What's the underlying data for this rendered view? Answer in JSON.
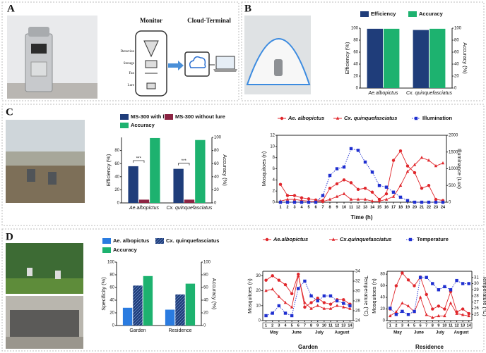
{
  "panels": {
    "labels": [
      "A",
      "B",
      "C",
      "D"
    ],
    "diagram": {
      "monitor": "Monitor",
      "cloud": "Cloud-Terminal",
      "parts": [
        "Detection",
        "Storage",
        "Fan",
        "Lure"
      ]
    }
  },
  "chart_data": [
    {
      "type": "bar",
      "categories": [
        "Ae.albopictus",
        "Cx. quinquefasciatus"
      ],
      "series": [
        {
          "name": "Efficiency",
          "color": "#1f3d7a",
          "values": [
            99,
            97
          ]
        },
        {
          "name": "Accuracy",
          "color": "#1db26f",
          "values": [
            99,
            99
          ],
          "axis": "y2"
        }
      ],
      "ylabel": "Efficiency (%)",
      "y2label": "Accuracy (%)",
      "ylabel_color": "#1f3d9a",
      "y2label_color": "#1db26f",
      "ylim": [
        0,
        100
      ],
      "yticks": [
        0,
        20,
        40,
        60,
        80,
        100
      ],
      "y2lim": [
        0,
        100
      ],
      "y2ticks": [
        0,
        20,
        40,
        60,
        80,
        100
      ]
    },
    {
      "type": "bar",
      "categories": [
        "Ae.albopictus",
        "Cx. quinquefasciatus"
      ],
      "series": [
        {
          "name": "MS-300 with lure",
          "color": "#1f3d7a",
          "values": [
            56,
            52
          ]
        },
        {
          "name": "MS-300 without lure",
          "color": "#8c2443",
          "values": [
            5,
            5
          ]
        },
        {
          "name": "Accuracy",
          "color": "#1db26f",
          "values": [
            99,
            96
          ],
          "axis": "y2"
        }
      ],
      "annotations": [
        "***",
        "***"
      ],
      "ylabel": "Efficiency (%)",
      "y2label": "Accuracy (%)",
      "ylabel_color": "#1f3d9a",
      "y2label_color": "#1db26f",
      "ylim": [
        0,
        100
      ],
      "yticks": [
        0,
        20,
        40,
        60,
        80
      ],
      "y2lim": [
        0,
        100
      ],
      "y2ticks": [
        0,
        20,
        40,
        60,
        80,
        100
      ]
    },
    {
      "type": "line",
      "x": [
        1,
        2,
        3,
        4,
        5,
        6,
        7,
        8,
        9,
        10,
        11,
        12,
        13,
        14,
        15,
        16,
        17,
        18,
        19,
        20,
        21,
        22,
        23,
        24
      ],
      "series": [
        {
          "name": "Ae. albopictus",
          "color": "#e0262b",
          "marker": "circle",
          "values": [
            3.2,
            1.2,
            1.2,
            0.8,
            0.6,
            0.4,
            0.3,
            2.5,
            3.3,
            4,
            3.5,
            2.3,
            2.5,
            1.8,
            0.5,
            1.5,
            7.5,
            9.2,
            6.5,
            5.3,
            2.5,
            3,
            0.5,
            0.3
          ]
        },
        {
          "name": "Cx. quinquefasciatus",
          "color": "#e0262b",
          "marker": "triangle",
          "values": [
            0.2,
            0.5,
            0.5,
            0.3,
            0.2,
            0.2,
            0.1,
            0.5,
            1,
            1.5,
            0.5,
            0.5,
            0.5,
            0.2,
            0.2,
            0.5,
            1,
            3,
            5.5,
            6.7,
            8,
            7.5,
            6.5,
            7
          ]
        },
        {
          "name": "Illumination",
          "color": "#1f2fd0",
          "marker": "square",
          "dash": true,
          "axis": "y2",
          "values": [
            0,
            0,
            0,
            0,
            0,
            0,
            200,
            800,
            1000,
            1050,
            1600,
            1550,
            1200,
            900,
            500,
            450,
            300,
            150,
            50,
            0,
            0,
            0,
            0,
            0
          ]
        }
      ],
      "xlabel": "Time (h)",
      "ylabel": "Mosquitoes (n)",
      "y2label": "Illuminance (Lux)",
      "ylabel_color": "#c8202a",
      "y2label_color": "#1f2fd0",
      "xlim": [
        0.5,
        24.5
      ],
      "xticks": [
        1,
        2,
        3,
        4,
        5,
        6,
        7,
        8,
        9,
        10,
        11,
        12,
        13,
        14,
        15,
        16,
        17,
        18,
        19,
        20,
        21,
        22,
        23,
        24
      ],
      "ylim": [
        0,
        12
      ],
      "yticks": [
        0,
        2,
        4,
        6,
        8,
        10,
        12
      ],
      "y2lim": [
        0,
        2000
      ],
      "y2ticks": [
        0,
        500,
        1000,
        1500,
        2000
      ]
    },
    {
      "type": "bar",
      "categories": [
        "Garden",
        "Residence"
      ],
      "series": [
        {
          "name": "Ae. albopictus",
          "color": "#2a7be0",
          "values": [
            28,
            25
          ]
        },
        {
          "name": "Cx. quinquefasciatus",
          "color": "#1f3d7a",
          "hatch": true,
          "values": [
            63,
            49
          ]
        },
        {
          "name": "Accuracy",
          "color": "#1db26f",
          "values": [
            78,
            66
          ],
          "axis": "y2"
        }
      ],
      "ylabel": "Specificity (%)",
      "y2label": "Accuracy (%)",
      "ylabel_color": "#2a7be0",
      "y2label_color": "#1db26f",
      "ylim": [
        0,
        100
      ],
      "yticks": [
        0,
        20,
        40,
        60,
        80,
        100
      ],
      "y2lim": [
        0,
        100
      ],
      "y2ticks": [
        0,
        20,
        40,
        60,
        80,
        100
      ]
    },
    {
      "type": "line",
      "x": [
        1,
        2,
        3,
        4,
        5,
        6,
        7,
        8,
        9,
        10,
        11,
        12,
        13,
        14
      ],
      "months": [
        "May",
        "June",
        "July",
        "August"
      ],
      "series": [
        {
          "name": "Ae.albopictus",
          "color": "#e0262b",
          "marker": "circle",
          "values": [
            27,
            30,
            27,
            24,
            18,
            31,
            9,
            12,
            15,
            12,
            11,
            14,
            14,
            11
          ]
        },
        {
          "name": "Cx.quinquefasciatus",
          "color": "#e0262b",
          "marker": "triangle",
          "values": [
            20,
            21,
            16,
            12,
            9,
            30,
            12,
            8,
            10,
            8,
            8,
            10,
            9,
            8
          ]
        },
        {
          "name": "Temperature",
          "color": "#1f2fd0",
          "marker": "square",
          "dash": true,
          "axis": "y2",
          "values": [
            25,
            25.5,
            27,
            25.5,
            25,
            30.5,
            32,
            29,
            28,
            29,
            29,
            28,
            27.5,
            27
          ]
        }
      ],
      "xlabel": "Garden",
      "ylabel": "Mosquitoes (n)",
      "y2label": "Temperature (°C)",
      "ylabel_color": "#c8202a",
      "y2label_color": "#1f2fd0",
      "xlim": [
        0.5,
        14.5
      ],
      "xticks": [
        1,
        2,
        3,
        4,
        5,
        6,
        7,
        8,
        9,
        10,
        11,
        12,
        13,
        14
      ],
      "ylim": [
        0,
        33
      ],
      "yticks": [
        0,
        10,
        20,
        30
      ],
      "y2lim": [
        24,
        34
      ],
      "y2ticks": [
        24,
        26,
        28,
        30,
        32,
        34
      ]
    },
    {
      "type": "line",
      "x": [
        1,
        2,
        3,
        4,
        5,
        6,
        7,
        8,
        9,
        10,
        11,
        12,
        13,
        14
      ],
      "months": [
        "May",
        "June",
        "July",
        "August"
      ],
      "series": [
        {
          "color": "#e0262b",
          "marker": "circle",
          "values": [
            20,
            60,
            82,
            70,
            60,
            75,
            45,
            20,
            25,
            20,
            50,
            15,
            20,
            12
          ]
        },
        {
          "color": "#e0262b",
          "marker": "triangle",
          "values": [
            8,
            15,
            30,
            25,
            15,
            40,
            10,
            5,
            8,
            8,
            30,
            12,
            10,
            8
          ]
        },
        {
          "color": "#1f2fd0",
          "marker": "square",
          "dash": true,
          "axis": "y2",
          "values": [
            26,
            25,
            25.5,
            25,
            25.5,
            31,
            31,
            30,
            29,
            29.5,
            29,
            30.5,
            30,
            30
          ]
        }
      ],
      "xlabel": "Residence",
      "ylabel": "Mosquitoes (n)",
      "y2label": "Temperature (°C)",
      "ylabel_color": "#c8202a",
      "y2label_color": "#1f2fd0",
      "xlim": [
        0.5,
        14.5
      ],
      "xticks": [
        1,
        2,
        3,
        4,
        5,
        6,
        7,
        8,
        9,
        10,
        11,
        12,
        13,
        14
      ],
      "ylim": [
        0,
        85
      ],
      "yticks": [
        0,
        20,
        40,
        60,
        80
      ],
      "y2lim": [
        24,
        32
      ],
      "y2ticks": [
        25,
        26,
        27,
        28,
        29,
        30,
        31
      ]
    }
  ]
}
